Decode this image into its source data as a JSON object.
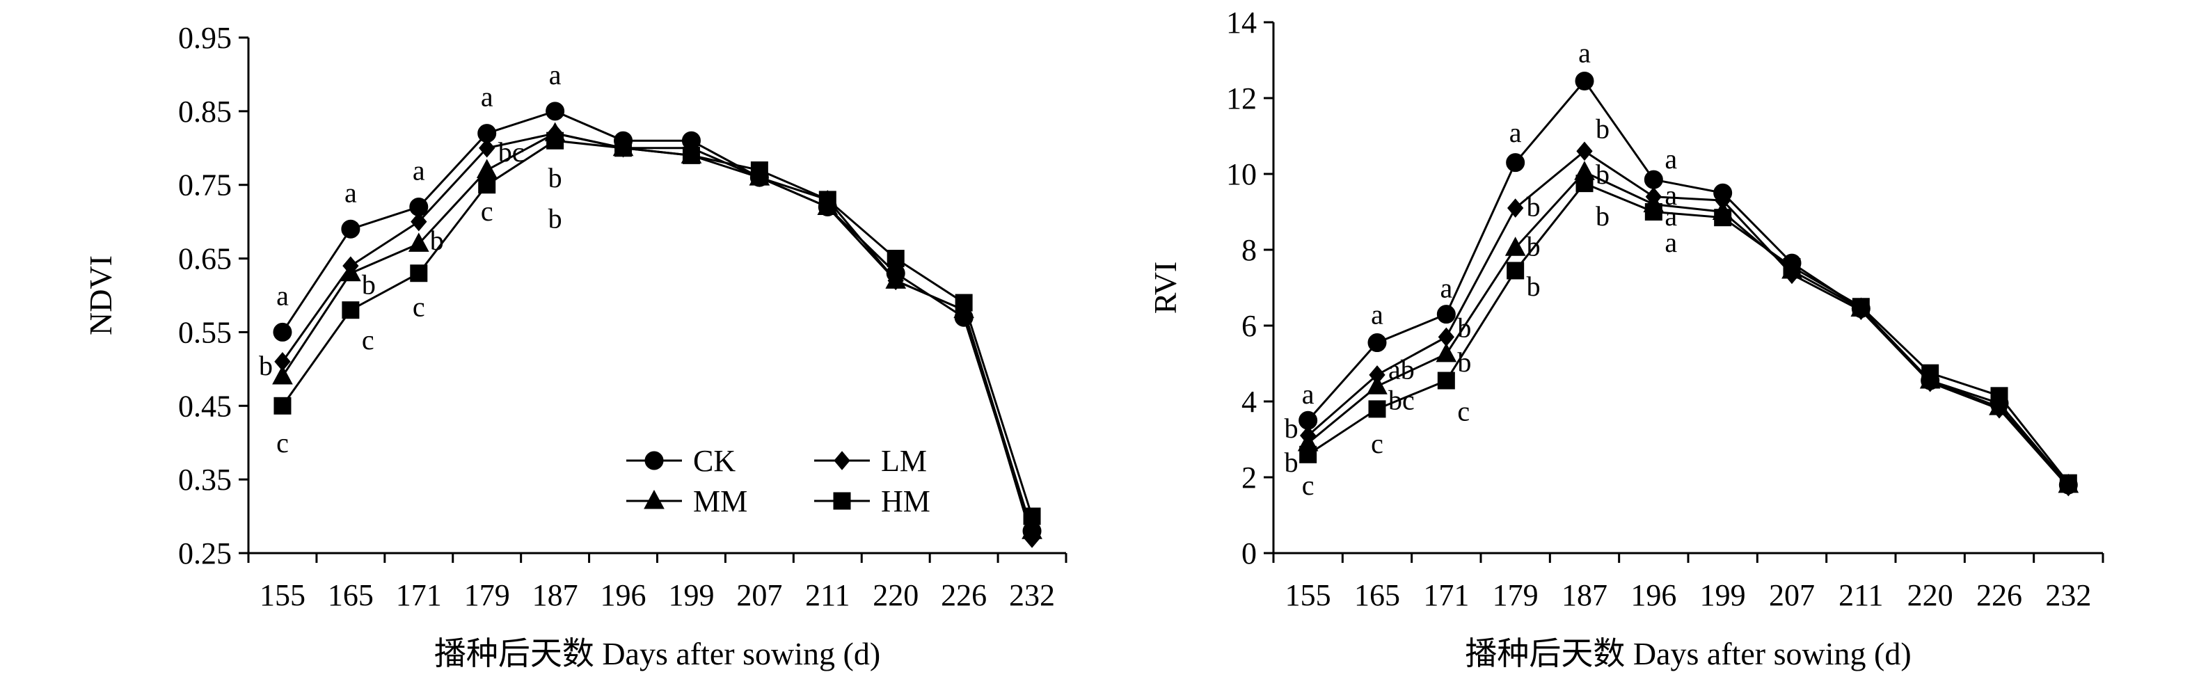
{
  "chart_data": [
    {
      "type": "line",
      "ylabel": "NDVI",
      "xlabel": "播种后天数 Days after sowing (d)",
      "categories": [
        "155",
        "165",
        "171",
        "179",
        "187",
        "196",
        "199",
        "207",
        "211",
        "220",
        "226",
        "232"
      ],
      "ylim": [
        0.25,
        0.95
      ],
      "yticks": [
        "0.25",
        "0.35",
        "0.45",
        "0.55",
        "0.65",
        "0.75",
        "0.85",
        "0.95"
      ],
      "legend": {
        "position": "bottom-left-inside"
      },
      "series": [
        {
          "name": "CK",
          "marker": "circle",
          "values": [
            0.55,
            0.69,
            0.72,
            0.82,
            0.85,
            0.81,
            0.81,
            0.76,
            0.72,
            0.63,
            0.57,
            0.28
          ]
        },
        {
          "name": "LM",
          "marker": "diamond",
          "values": [
            0.51,
            0.64,
            0.7,
            0.8,
            0.82,
            0.8,
            0.8,
            0.76,
            0.73,
            0.62,
            0.58,
            0.27
          ]
        },
        {
          "name": "MM",
          "marker": "triangle",
          "values": [
            0.49,
            0.63,
            0.67,
            0.77,
            0.82,
            0.8,
            0.79,
            0.76,
            0.72,
            0.62,
            0.58,
            0.28
          ]
        },
        {
          "name": "HM",
          "marker": "square",
          "values": [
            0.45,
            0.58,
            0.63,
            0.75,
            0.81,
            0.8,
            0.79,
            0.77,
            0.73,
            0.65,
            0.59,
            0.3
          ]
        }
      ],
      "annotations": [
        {
          "text": "a",
          "x": "155",
          "y": 0.6
        },
        {
          "text": "b",
          "x": "155",
          "y": 0.505,
          "side": "left"
        },
        {
          "text": "c",
          "x": "155",
          "y": 0.4
        },
        {
          "text": "a",
          "x": "165",
          "y": 0.74
        },
        {
          "text": "b",
          "x": "165",
          "y": 0.615,
          "side": "right"
        },
        {
          "text": "c",
          "x": "165",
          "y": 0.54,
          "side": "right"
        },
        {
          "text": "a",
          "x": "171",
          "y": 0.77
        },
        {
          "text": "b",
          "x": "171",
          "y": 0.675,
          "side": "right"
        },
        {
          "text": "c",
          "x": "171",
          "y": 0.585
        },
        {
          "text": "a",
          "x": "179",
          "y": 0.87
        },
        {
          "text": "bc",
          "x": "179",
          "y": 0.795,
          "side": "right"
        },
        {
          "text": "c",
          "x": "179",
          "y": 0.715
        },
        {
          "text": "a",
          "x": "187",
          "y": 0.9
        },
        {
          "text": "b",
          "x": "187",
          "y": 0.76
        },
        {
          "text": "b",
          "x": "187",
          "y": 0.705
        }
      ],
      "legend_entries": [
        "CK",
        "LM",
        "MM",
        "HM"
      ]
    },
    {
      "type": "line",
      "ylabel": "RVI",
      "xlabel": "播种后天数 Days after sowing (d)",
      "categories": [
        "155",
        "165",
        "171",
        "179",
        "187",
        "196",
        "199",
        "207",
        "211",
        "220",
        "226",
        "232"
      ],
      "ylim": [
        0,
        14
      ],
      "yticks": [
        "0",
        "2",
        "4",
        "6",
        "8",
        "10",
        "12",
        "14"
      ],
      "series": [
        {
          "name": "CK",
          "marker": "circle",
          "values": [
            3.5,
            5.55,
            6.3,
            10.3,
            12.45,
            9.85,
            9.5,
            7.65,
            6.45,
            4.55,
            3.95,
            1.8
          ]
        },
        {
          "name": "LM",
          "marker": "diamond",
          "values": [
            3.1,
            4.7,
            5.7,
            9.1,
            10.6,
            9.4,
            9.3,
            7.35,
            6.4,
            4.5,
            3.8,
            1.75
          ]
        },
        {
          "name": "MM",
          "marker": "triangle",
          "values": [
            2.9,
            4.4,
            5.25,
            8.05,
            10.05,
            9.2,
            9.0,
            7.45,
            6.45,
            4.55,
            3.85,
            1.8
          ]
        },
        {
          "name": "HM",
          "marker": "square",
          "values": [
            2.6,
            3.8,
            4.55,
            7.45,
            9.75,
            9.0,
            8.85,
            7.55,
            6.5,
            4.75,
            4.15,
            1.85
          ]
        }
      ],
      "annotations": [
        {
          "text": "a",
          "x": "155",
          "y": 4.2
        },
        {
          "text": "b",
          "x": "155",
          "y": 3.3,
          "side": "left"
        },
        {
          "text": "b",
          "x": "155",
          "y": 2.4,
          "side": "left"
        },
        {
          "text": "c",
          "x": "155",
          "y": 1.8
        },
        {
          "text": "a",
          "x": "165",
          "y": 6.3
        },
        {
          "text": "ab",
          "x": "165",
          "y": 4.85,
          "side": "right"
        },
        {
          "text": "bc",
          "x": "165",
          "y": 4.05,
          "side": "right"
        },
        {
          "text": "c",
          "x": "165",
          "y": 2.9
        },
        {
          "text": "a",
          "x": "171",
          "y": 7.0
        },
        {
          "text": "b",
          "x": "171",
          "y": 5.95,
          "side": "right"
        },
        {
          "text": "b",
          "x": "171",
          "y": 5.05,
          "side": "right"
        },
        {
          "text": "c",
          "x": "171",
          "y": 3.75,
          "side": "right"
        },
        {
          "text": "a",
          "x": "179",
          "y": 11.1
        },
        {
          "text": "b",
          "x": "179",
          "y": 9.15,
          "side": "right"
        },
        {
          "text": "b",
          "x": "179",
          "y": 8.1,
          "side": "right"
        },
        {
          "text": "b",
          "x": "179",
          "y": 7.05,
          "side": "right"
        },
        {
          "text": "a",
          "x": "187",
          "y": 13.2
        },
        {
          "text": "b",
          "x": "187",
          "y": 11.2,
          "side": "right"
        },
        {
          "text": "b",
          "x": "187",
          "y": 10.0,
          "side": "right"
        },
        {
          "text": "b",
          "x": "187",
          "y": 8.9,
          "side": "right"
        },
        {
          "text": "a",
          "x": "196",
          "y": 10.4,
          "side": "right"
        },
        {
          "text": "a",
          "x": "196",
          "y": 9.45,
          "side": "right"
        },
        {
          "text": "a",
          "x": "196",
          "y": 8.9,
          "side": "right"
        },
        {
          "text": "a",
          "x": "196",
          "y": 8.2,
          "side": "right"
        }
      ]
    }
  ]
}
